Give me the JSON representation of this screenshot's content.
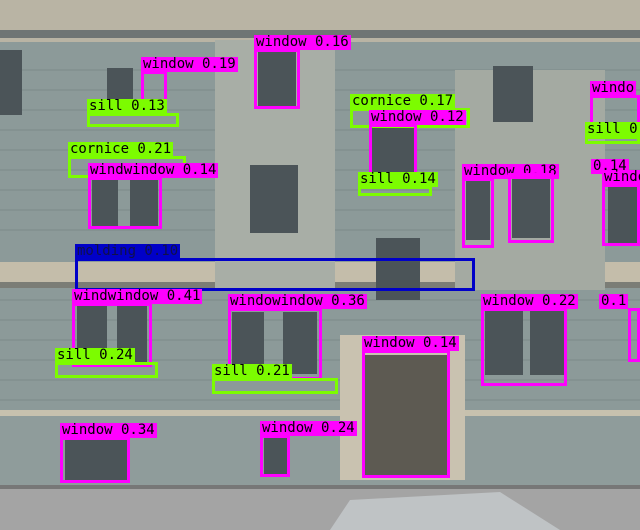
{
  "image": {
    "description_colors": {
      "facade": "#8c9a99",
      "trim": "#c9c2b0",
      "sky": "#dfe6ec",
      "sidewalk": "#a4a4a4"
    }
  },
  "detections": [
    {
      "name": "det-window-1",
      "label": "window 0.16",
      "cls": "window"
    },
    {
      "name": "det-window-2",
      "label": "window 0.19",
      "cls": "window"
    },
    {
      "name": "det-sill-1",
      "label": "sill 0.13",
      "cls": "sill"
    },
    {
      "name": "det-cornice-1",
      "label": "cornice 0.17",
      "cls": "cornice"
    },
    {
      "name": "det-window-3",
      "label": "window 0.12",
      "cls": "window"
    },
    {
      "name": "det-window-4",
      "label": "windo",
      "cls": "window"
    },
    {
      "name": "det-sill-2",
      "label": "sill 0",
      "cls": "sill"
    },
    {
      "name": "det-cornice-2",
      "label": "cornice 0.21",
      "cls": "cornice"
    },
    {
      "name": "det-window-5",
      "label": "windwindow 0.14",
      "cls": "window"
    },
    {
      "name": "det-sill-3",
      "label": "sill 0.14",
      "cls": "sill"
    },
    {
      "name": "det-window-6",
      "label": "window 0.18",
      "cls": "window"
    },
    {
      "name": "det-window-7",
      "label": "0.14",
      "cls": "window"
    },
    {
      "name": "det-window-8",
      "label": "windo",
      "cls": "window"
    },
    {
      "name": "det-molding-1",
      "label": "molding 0.10",
      "cls": "molding"
    },
    {
      "name": "det-window-9",
      "label": "windwindow 0.41",
      "cls": "window"
    },
    {
      "name": "det-window-10",
      "label": "windowindow 0.36",
      "cls": "window"
    },
    {
      "name": "det-window-11",
      "label": "window 0.22",
      "cls": "window"
    },
    {
      "name": "det-window-12",
      "label": "0.1",
      "cls": "window"
    },
    {
      "name": "det-sill-4",
      "label": "sill 0.24",
      "cls": "sill"
    },
    {
      "name": "det-window-13",
      "label": "window 0.14",
      "cls": "window"
    },
    {
      "name": "det-sill-5",
      "label": "sill 0.21",
      "cls": "sill"
    },
    {
      "name": "det-window-14",
      "label": "window 0.34",
      "cls": "window"
    },
    {
      "name": "det-window-15",
      "label": "window 0.24",
      "cls": "window"
    }
  ]
}
